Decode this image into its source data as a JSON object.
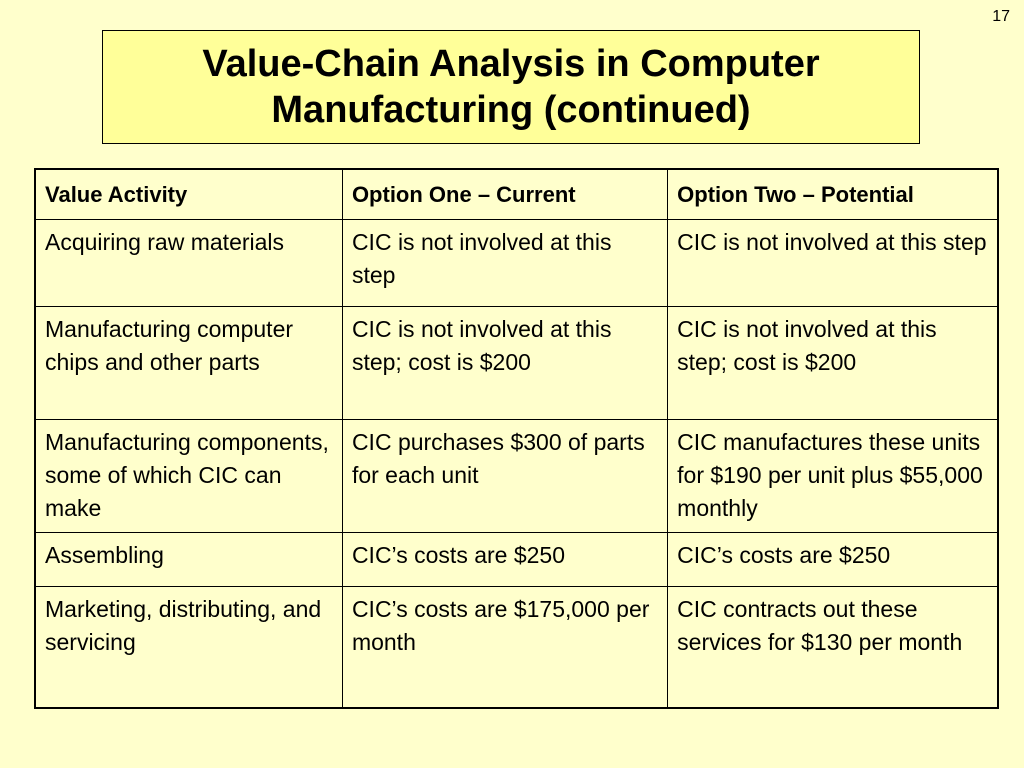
{
  "slide": {
    "number": "17",
    "title_line1": "Value-Chain Analysis in Computer",
    "title_line2": "Manufacturing (continued)"
  },
  "table": {
    "headers": [
      "Value Activity",
      "Option One – Current",
      "Option Two – Potential"
    ],
    "rows": [
      [
        "Acquiring raw materials",
        "CIC is not involved at this step",
        "CIC is not involved at this step"
      ],
      [
        "Manufacturing computer chips and other parts",
        "CIC is not involved at this step; cost is $200",
        "CIC is not involved at this step; cost is $200"
      ],
      [
        "Manufacturing components, some of which CIC can make",
        "CIC purchases $300 of parts for each unit",
        "CIC manufactures these units for $190 per unit plus $55,000 monthly"
      ],
      [
        "Assembling",
        "CIC’s costs are $250",
        "CIC’s costs are $250"
      ],
      [
        "Marketing, distributing, and servicing",
        "CIC’s costs are $175,000 per month",
        "CIC contracts out these services for $130 per month"
      ]
    ]
  }
}
